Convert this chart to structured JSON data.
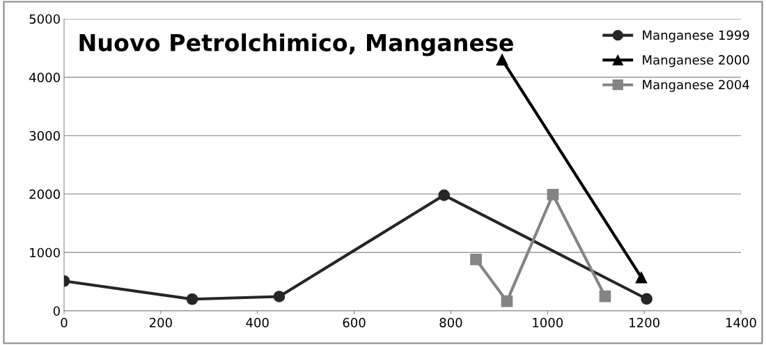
{
  "chart_data": {
    "type": "line",
    "title": "Nuovo Petrolchimico, Manganese",
    "series": [
      {
        "name": "Manganese 1999",
        "color": "#262626",
        "marker": "circle",
        "x": [
          0,
          265,
          445,
          786,
          1205
        ],
        "values": [
          510,
          200,
          245,
          1980,
          205
        ]
      },
      {
        "name": "Manganese 2000",
        "color": "#000000",
        "marker": "triangle",
        "x": [
          906,
          1194
        ],
        "values": [
          4300,
          570
        ]
      },
      {
        "name": "Manganese 2004",
        "color": "#848484",
        "marker": "square",
        "x": [
          852,
          916,
          1011,
          1119
        ],
        "values": [
          880,
          165,
          1990,
          250
        ]
      }
    ],
    "xlim": [
      0,
      1400
    ],
    "xticks": [
      0,
      200,
      400,
      600,
      800,
      1000,
      1200,
      1400
    ],
    "ylim": [
      0,
      5000
    ],
    "yticks": [
      0,
      1000,
      2000,
      3000,
      4000,
      5000
    ],
    "grid": "y",
    "legend": "top right",
    "line_style": "solid"
  }
}
